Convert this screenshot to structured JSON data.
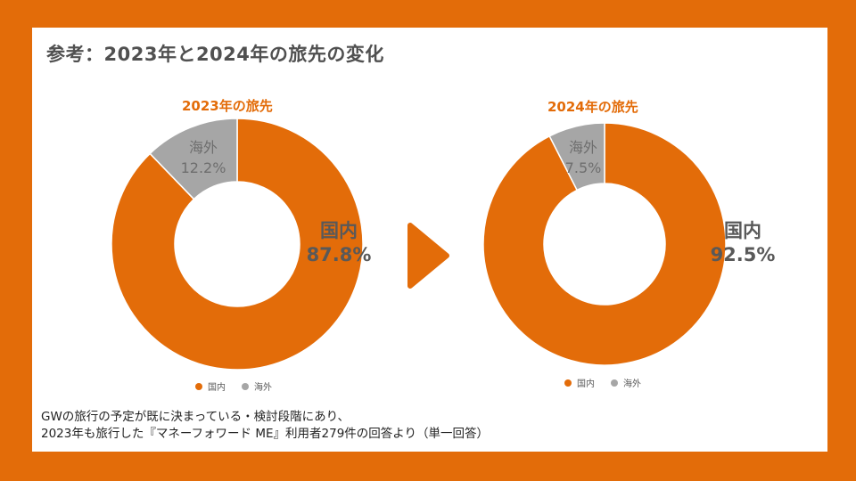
{
  "title": "参考：2023年と2024年の旅先の変化",
  "colors": {
    "domestic": "#E36C09",
    "overseas": "#A6A6A6",
    "arrow": "#E36C09"
  },
  "chart_data": [
    {
      "type": "pie",
      "title": "2023年の旅先",
      "categories": [
        "国内",
        "海外"
      ],
      "values": [
        87.8,
        12.2
      ],
      "value_labels": [
        "87.8%",
        "12.2%"
      ],
      "legend": [
        "国内",
        "海外"
      ]
    },
    {
      "type": "pie",
      "title": "2024年の旅先",
      "categories": [
        "国内",
        "海外"
      ],
      "values": [
        92.5,
        7.5
      ],
      "value_labels": [
        "92.5%",
        "7.5%"
      ],
      "legend": [
        "国内",
        "海外"
      ]
    }
  ],
  "note": {
    "line1": "GWの旅行の予定が既に決まっている・検討段階にあり、",
    "line2": "2023年も旅行した『マネーフォワード ME』利用者279件の回答より（単一回答）"
  }
}
